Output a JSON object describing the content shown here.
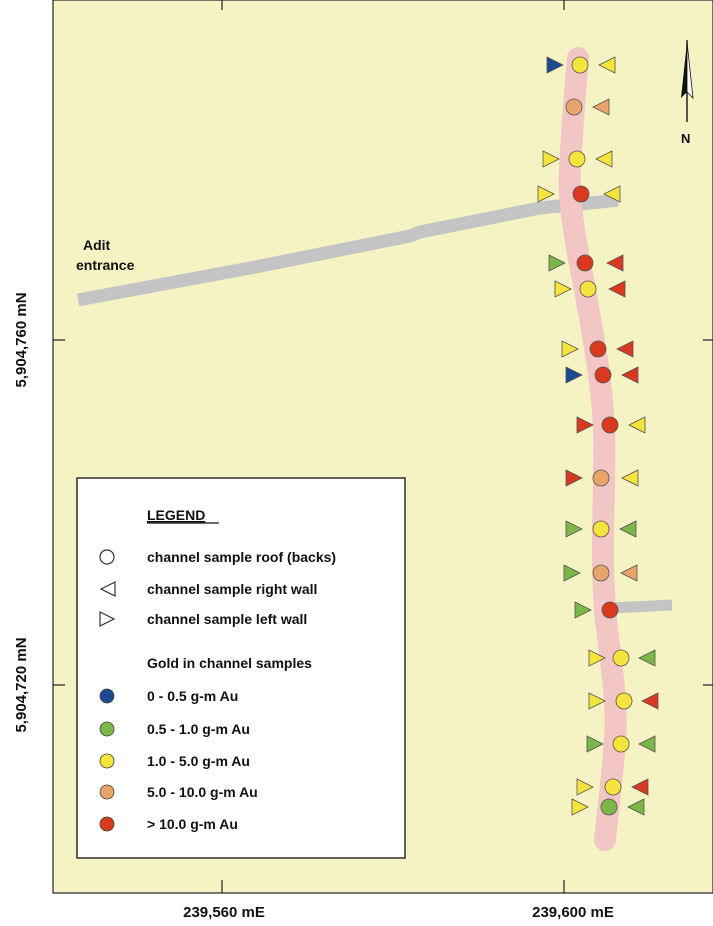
{
  "map": {
    "adit_label_line1": "Adit",
    "adit_label_line2": "entrance",
    "north_label": "N",
    "y_axis_labels": [
      "5,904,760 mN",
      "5,904,720 mN"
    ],
    "x_axis_labels": [
      "239,560 mE",
      "239,600 mE"
    ]
  },
  "legend": {
    "title": "LEGEND",
    "symbols": [
      {
        "shape": "circle",
        "label": "channel sample roof (backs)"
      },
      {
        "shape": "left-triangle",
        "label": "channel sample right wall"
      },
      {
        "shape": "right-triangle",
        "label": "channel sample left wall"
      }
    ],
    "gold_heading": "Gold in channel samples",
    "grades": [
      {
        "code": "blue",
        "label": "0 - 0.5 g-m Au"
      },
      {
        "code": "green",
        "label": "0.5 - 1.0 g-m Au"
      },
      {
        "code": "yellow",
        "label": "1.0 - 5.0 g-m Au"
      },
      {
        "code": "orange",
        "label": "5.0 - 10.0 g-m Au"
      },
      {
        "code": "red",
        "label": "> 10.0 g-m Au"
      }
    ]
  },
  "colors": {
    "map_background": "#f5f3c4",
    "adit_tunnel": "#c4c4c4",
    "vein": "#f2c6c4",
    "blue": "#1a4a94",
    "green": "#7ab648",
    "yellow": "#f5e43b",
    "orange": "#e8a46a",
    "red": "#d9391f"
  },
  "samples": [
    {
      "left": "blue",
      "roof": "yellow",
      "right": "yellow"
    },
    {
      "left": null,
      "roof": "orange",
      "right": "orange"
    },
    {
      "left": "yellow",
      "roof": "yellow",
      "right": "yellow"
    },
    {
      "left": "yellow",
      "roof": "red",
      "right": "yellow"
    },
    {
      "left": "green",
      "roof": "red",
      "right": "red"
    },
    {
      "left": "yellow",
      "roof": "yellow",
      "right": "red"
    },
    {
      "left": "yellow",
      "roof": "red",
      "right": "red"
    },
    {
      "left": "blue",
      "roof": "red",
      "right": "red"
    },
    {
      "left": "red",
      "roof": "red",
      "right": "yellow"
    },
    {
      "left": "red",
      "roof": "orange",
      "right": "yellow"
    },
    {
      "left": "green",
      "roof": "yellow",
      "right": "green"
    },
    {
      "left": "green",
      "roof": "orange",
      "right": "orange"
    },
    {
      "left": "green",
      "roof": "red",
      "right": null
    },
    {
      "left": "yellow",
      "roof": "yellow",
      "right": "green"
    },
    {
      "left": "yellow",
      "roof": "yellow",
      "right": "red"
    },
    {
      "left": "green",
      "roof": "yellow",
      "right": "green"
    },
    {
      "left": "yellow",
      "roof": "yellow",
      "right": "red"
    },
    {
      "left": "yellow",
      "roof": "green",
      "right": "green"
    }
  ]
}
